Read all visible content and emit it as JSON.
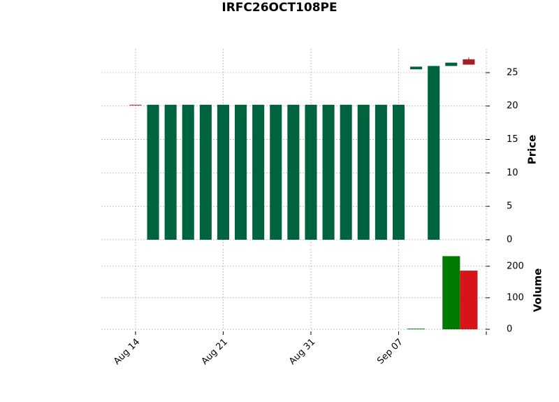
{
  "chart_data": {
    "type": "candlestick",
    "title": "IRFC26OCT108PE",
    "categories": [
      "Aug 14",
      null,
      null,
      null,
      null,
      "Aug 21",
      null,
      null,
      null,
      null,
      "Aug 31",
      null,
      null,
      null,
      null,
      "Sep 07",
      null,
      null,
      null,
      null
    ],
    "open": [
      20.2,
      0,
      0,
      0,
      0,
      0,
      0,
      0,
      0,
      0,
      0,
      0,
      0,
      0,
      0,
      0,
      25.5,
      0,
      26.0,
      27.0
    ],
    "high": [
      20.2,
      20.2,
      20.2,
      20.2,
      20.2,
      20.2,
      20.2,
      20.2,
      20.2,
      20.2,
      20.2,
      20.2,
      20.2,
      20.2,
      20.2,
      20.2,
      25.9,
      26.0,
      26.5,
      27.3
    ],
    "low": [
      20.2,
      0,
      0,
      0,
      0,
      0,
      0,
      0,
      0,
      0,
      0,
      0,
      0,
      0,
      0,
      0,
      25.5,
      0,
      26.0,
      26.2
    ],
    "close": [
      20.2,
      20.2,
      20.2,
      20.2,
      20.2,
      20.2,
      20.2,
      20.2,
      20.2,
      20.2,
      20.2,
      20.2,
      20.2,
      20.2,
      20.2,
      20.2,
      25.9,
      26.0,
      26.5,
      26.2
    ],
    "volume": [
      0,
      0,
      0,
      0,
      0,
      0,
      0,
      0,
      0,
      0,
      0,
      0,
      0,
      0,
      0,
      0,
      2,
      0,
      232,
      186
    ],
    "up_color": "#006340",
    "down_color": "#a02128",
    "volume_up_color": "#007a00",
    "volume_down_color": "#d7141a",
    "xlim": [
      -1.95,
      20.2
    ],
    "xticks": [
      0,
      5,
      10,
      15,
      20
    ],
    "ylabel": "Price",
    "ylim": [
      -0.95,
      28.55
    ],
    "yticks": [
      0,
      5,
      10,
      15,
      20,
      25
    ],
    "volume_label": "Volume",
    "volume_ylim": [
      0,
      255
    ],
    "volume_yticks": [
      0,
      100,
      200
    ],
    "grid": true
  }
}
